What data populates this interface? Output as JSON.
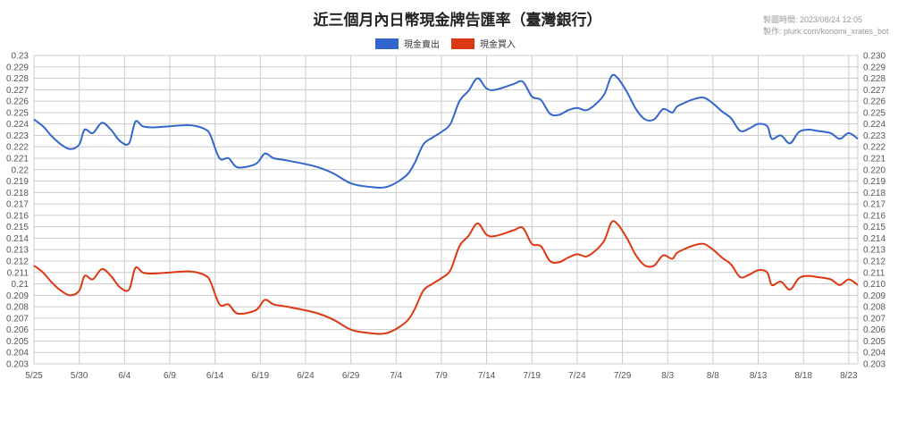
{
  "header": {
    "title": "近三個月內日幣現金牌告匯率（臺灣銀行）",
    "made_time": "製圖時間: 2023/08/24 12:05",
    "made_by": "製作: plurk.com/konomi_xrates_bot"
  },
  "colors": {
    "sell": "#3366cc",
    "buy": "#dc3912",
    "grid": "#cccccc"
  },
  "chart_data": {
    "type": "line",
    "title": "近三個月內日幣現金牌告匯率（臺灣銀行）",
    "ylim": [
      0.203,
      0.23
    ],
    "yticks": [
      "0.203",
      "0.204",
      "0.205",
      "0.206",
      "0.207",
      "0.208",
      "0.209",
      "0.21",
      "0.211",
      "0.212",
      "0.213",
      "0.214",
      "0.215",
      "0.216",
      "0.217",
      "0.218",
      "0.219",
      "0.22",
      "0.221",
      "0.222",
      "0.223",
      "0.224",
      "0.225",
      "0.226",
      "0.227",
      "0.228",
      "0.229",
      "0.23"
    ],
    "yticks_right": [
      "0.203",
      "0.204",
      "0.205",
      "0.206",
      "0.207",
      "0.208",
      "0.209",
      "0.210",
      "0.211",
      "0.212",
      "0.213",
      "0.214",
      "0.215",
      "0.216",
      "0.217",
      "0.218",
      "0.219",
      "0.220",
      "0.221",
      "0.222",
      "0.223",
      "0.224",
      "0.225",
      "0.226",
      "0.227",
      "0.228",
      "0.229",
      "0.230"
    ],
    "xticks": [
      {
        "day": 0,
        "label": "5/25"
      },
      {
        "day": 5,
        "label": "5/30"
      },
      {
        "day": 10,
        "label": "6/4"
      },
      {
        "day": 15,
        "label": "6/9"
      },
      {
        "day": 20,
        "label": "6/14"
      },
      {
        "day": 25,
        "label": "6/19"
      },
      {
        "day": 30,
        "label": "6/24"
      },
      {
        "day": 35,
        "label": "6/29"
      },
      {
        "day": 40,
        "label": "7/4"
      },
      {
        "day": 45,
        "label": "7/9"
      },
      {
        "day": 50,
        "label": "7/14"
      },
      {
        "day": 55,
        "label": "7/19"
      },
      {
        "day": 60,
        "label": "7/24"
      },
      {
        "day": 65,
        "label": "7/29"
      },
      {
        "day": 70,
        "label": "8/3"
      },
      {
        "day": 75,
        "label": "8/8"
      },
      {
        "day": 80,
        "label": "8/13"
      },
      {
        "day": 85,
        "label": "8/18"
      },
      {
        "day": 90,
        "label": "8/23"
      }
    ],
    "x_max": 91,
    "legend_position": "top-center",
    "grid": true,
    "series": [
      {
        "name": "現金賣出",
        "points": [
          [
            0,
            0.2244
          ],
          [
            1,
            0.2238
          ],
          [
            2,
            0.2229
          ],
          [
            3,
            0.2222
          ],
          [
            4,
            0.2218
          ],
          [
            5,
            0.2222
          ],
          [
            5.6,
            0.2235
          ],
          [
            6.5,
            0.2232
          ],
          [
            7.5,
            0.2241
          ],
          [
            8.5,
            0.2235
          ],
          [
            9.5,
            0.2225
          ],
          [
            10.5,
            0.2223
          ],
          [
            11.2,
            0.2242
          ],
          [
            12,
            0.2238
          ],
          [
            13,
            0.2237
          ],
          [
            15,
            0.2238
          ],
          [
            17,
            0.2239
          ],
          [
            18,
            0.2238
          ],
          [
            19,
            0.2235
          ],
          [
            19.5,
            0.223
          ],
          [
            20.5,
            0.221
          ],
          [
            21.5,
            0.221
          ],
          [
            22.5,
            0.2202
          ],
          [
            24.5,
            0.2205
          ],
          [
            25.5,
            0.2214
          ],
          [
            26.5,
            0.221
          ],
          [
            28,
            0.2208
          ],
          [
            31,
            0.2203
          ],
          [
            33,
            0.2197
          ],
          [
            35,
            0.2188
          ],
          [
            37,
            0.2185
          ],
          [
            39,
            0.2185
          ],
          [
            41,
            0.2194
          ],
          [
            42,
            0.2205
          ],
          [
            43,
            0.2222
          ],
          [
            44,
            0.2228
          ],
          [
            45,
            0.2233
          ],
          [
            46,
            0.224
          ],
          [
            47,
            0.226
          ],
          [
            48,
            0.2269
          ],
          [
            49,
            0.228
          ],
          [
            50,
            0.2271
          ],
          [
            51,
            0.227
          ],
          [
            53,
            0.2275
          ],
          [
            54,
            0.2277
          ],
          [
            55,
            0.2264
          ],
          [
            56,
            0.2261
          ],
          [
            57,
            0.2249
          ],
          [
            58,
            0.2248
          ],
          [
            59,
            0.2252
          ],
          [
            60,
            0.2254
          ],
          [
            61,
            0.2252
          ],
          [
            62,
            0.2257
          ],
          [
            63,
            0.2266
          ],
          [
            63.8,
            0.2282
          ],
          [
            64.5,
            0.228
          ],
          [
            65.5,
            0.2268
          ],
          [
            66.5,
            0.2253
          ],
          [
            67.5,
            0.2244
          ],
          [
            68.5,
            0.2244
          ],
          [
            69.5,
            0.2253
          ],
          [
            70.5,
            0.225
          ],
          [
            71,
            0.2255
          ],
          [
            72,
            0.2259
          ],
          [
            73,
            0.2262
          ],
          [
            74,
            0.2263
          ],
          [
            75,
            0.2258
          ],
          [
            76,
            0.2251
          ],
          [
            77,
            0.2245
          ],
          [
            78,
            0.2234
          ],
          [
            79,
            0.2236
          ],
          [
            80,
            0.224
          ],
          [
            81,
            0.2238
          ],
          [
            81.5,
            0.2227
          ],
          [
            82.5,
            0.223
          ],
          [
            83.5,
            0.2223
          ],
          [
            84.5,
            0.2233
          ],
          [
            85.5,
            0.2235
          ],
          [
            86.5,
            0.2234
          ],
          [
            88,
            0.2232
          ],
          [
            89,
            0.2227
          ],
          [
            90,
            0.2232
          ],
          [
            91,
            0.2227
          ]
        ]
      },
      {
        "name": "現金買入",
        "points": [
          [
            0,
            0.2116
          ],
          [
            1,
            0.211
          ],
          [
            2,
            0.2101
          ],
          [
            3,
            0.2094
          ],
          [
            4,
            0.209
          ],
          [
            5,
            0.2094
          ],
          [
            5.6,
            0.2107
          ],
          [
            6.5,
            0.2104
          ],
          [
            7.5,
            0.2113
          ],
          [
            8.5,
            0.2107
          ],
          [
            9.5,
            0.2097
          ],
          [
            10.5,
            0.2095
          ],
          [
            11.2,
            0.2114
          ],
          [
            12,
            0.211
          ],
          [
            13,
            0.2109
          ],
          [
            15,
            0.211
          ],
          [
            17,
            0.2111
          ],
          [
            18,
            0.211
          ],
          [
            19,
            0.2107
          ],
          [
            19.5,
            0.2102
          ],
          [
            20.5,
            0.2082
          ],
          [
            21.5,
            0.2082
          ],
          [
            22.5,
            0.2074
          ],
          [
            24.5,
            0.2077
          ],
          [
            25.5,
            0.2086
          ],
          [
            26.5,
            0.2082
          ],
          [
            28,
            0.208
          ],
          [
            31,
            0.2075
          ],
          [
            33,
            0.2069
          ],
          [
            35,
            0.206
          ],
          [
            37,
            0.2057
          ],
          [
            39,
            0.2057
          ],
          [
            41,
            0.2066
          ],
          [
            42,
            0.2077
          ],
          [
            43,
            0.2094
          ],
          [
            44,
            0.21
          ],
          [
            45,
            0.2105
          ],
          [
            46,
            0.2112
          ],
          [
            47,
            0.2133
          ],
          [
            48,
            0.2142
          ],
          [
            49,
            0.2153
          ],
          [
            50,
            0.2143
          ],
          [
            51,
            0.2142
          ],
          [
            53,
            0.2147
          ],
          [
            54,
            0.2149
          ],
          [
            55,
            0.2135
          ],
          [
            56,
            0.2133
          ],
          [
            57,
            0.212
          ],
          [
            58,
            0.2119
          ],
          [
            59,
            0.2123
          ],
          [
            60,
            0.2126
          ],
          [
            61,
            0.2124
          ],
          [
            62,
            0.2129
          ],
          [
            63,
            0.2138
          ],
          [
            63.8,
            0.2154
          ],
          [
            64.5,
            0.2152
          ],
          [
            65.5,
            0.214
          ],
          [
            66.5,
            0.2125
          ],
          [
            67.5,
            0.2116
          ],
          [
            68.5,
            0.2116
          ],
          [
            69.5,
            0.2125
          ],
          [
            70.5,
            0.2122
          ],
          [
            71,
            0.2127
          ],
          [
            72,
            0.2131
          ],
          [
            73,
            0.2134
          ],
          [
            74,
            0.2135
          ],
          [
            75,
            0.213
          ],
          [
            76,
            0.2123
          ],
          [
            77,
            0.2117
          ],
          [
            78,
            0.2106
          ],
          [
            79,
            0.2108
          ],
          [
            80,
            0.2112
          ],
          [
            81,
            0.211
          ],
          [
            81.5,
            0.2099
          ],
          [
            82.5,
            0.2102
          ],
          [
            83.5,
            0.2095
          ],
          [
            84.5,
            0.2105
          ],
          [
            85.5,
            0.2107
          ],
          [
            86.5,
            0.2106
          ],
          [
            88,
            0.2104
          ],
          [
            89,
            0.2099
          ],
          [
            90,
            0.2104
          ],
          [
            91,
            0.2099
          ]
        ]
      }
    ]
  }
}
